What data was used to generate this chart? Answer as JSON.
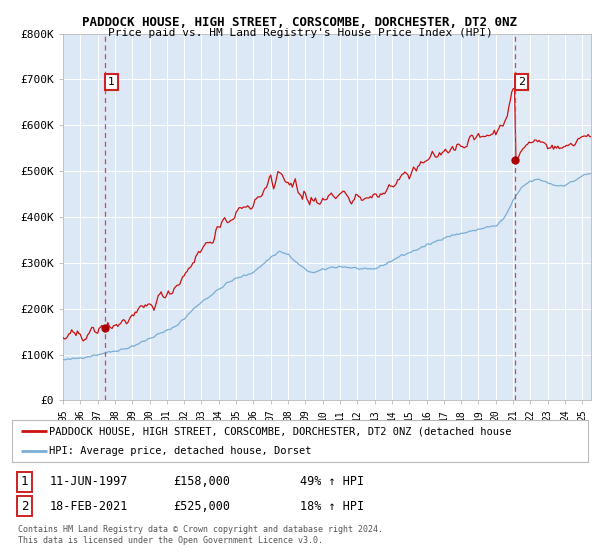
{
  "title": "PADDOCK HOUSE, HIGH STREET, CORSCOMBE, DORCHESTER, DT2 0NZ",
  "subtitle": "Price paid vs. HM Land Registry's House Price Index (HPI)",
  "background_color": "#dde8f0",
  "plot_bg_color": "#dce8f5",
  "ylim": [
    0,
    800000
  ],
  "yticks": [
    0,
    100000,
    200000,
    300000,
    400000,
    500000,
    600000,
    700000,
    800000
  ],
  "ytick_labels": [
    "£0",
    "£100K",
    "£200K",
    "£300K",
    "£400K",
    "£500K",
    "£600K",
    "£700K",
    "£800K"
  ],
  "sale1_year": 1997.44,
  "sale1_price": 158000,
  "sale1_label": "1",
  "sale1_date_str": "11-JUN-1997",
  "sale1_pct": "49%",
  "sale2_year": 2021.12,
  "sale2_price": 525000,
  "sale2_label": "2",
  "sale2_date_str": "18-FEB-2021",
  "sale2_pct": "18%",
  "legend_label_property": "PADDOCK HOUSE, HIGH STREET, CORSCOMBE, DORCHESTER, DT2 0NZ (detached house",
  "legend_label_hpi": "HPI: Average price, detached house, Dorset",
  "footer": "Contains HM Land Registry data © Crown copyright and database right 2024.\nThis data is licensed under the Open Government Licence v3.0.",
  "property_color": "#cc1111",
  "hpi_color": "#7aaed6",
  "dashed_line_color": "#dd4444",
  "marker_color": "#aa0000",
  "box_color": "#cc2222",
  "xlim_start": 1995.0,
  "xlim_end": 2025.5
}
